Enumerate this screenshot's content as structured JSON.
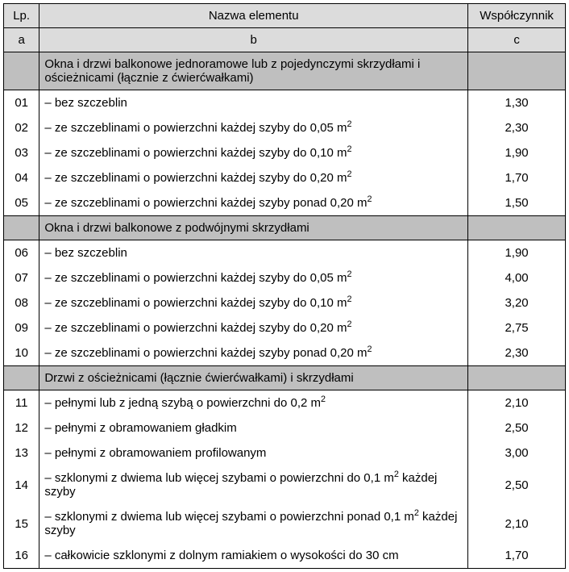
{
  "table": {
    "columns": {
      "lp": {
        "header": "Lp.",
        "sub": "a"
      },
      "nm": {
        "header": "Nazwa elementu",
        "sub": "b"
      },
      "ws": {
        "header": "Współczynnik",
        "sub": "c"
      }
    },
    "colors": {
      "header_bg": "#dcdcdc",
      "section_bg": "#bfbfbf",
      "border": "#000000",
      "text": "#000000",
      "page_bg": "#ffffff"
    },
    "font": {
      "family": "Arial",
      "size_pt": 11
    },
    "superscript": "2",
    "rows": [
      {
        "type": "section",
        "text": "Okna i drzwi balkonowe jednoramowe lub z pojedynczymi skrzydłami i ościeżnicami (łącznie z ćwierćwałkami)"
      },
      {
        "type": "data",
        "lp": "01",
        "text": "– bez szczeblin",
        "coef": "1,30"
      },
      {
        "type": "data",
        "lp": "02",
        "text": "– ze szczeblinami o powierzchni każdej szyby do 0,05 m",
        "sup": true,
        "coef": "2,30"
      },
      {
        "type": "data",
        "lp": "03",
        "text": "– ze szczeblinami o powierzchni każdej szyby do 0,10 m",
        "sup": true,
        "coef": "1,90"
      },
      {
        "type": "data",
        "lp": "04",
        "text": "– ze szczeblinami o powierzchni każdej szyby do 0,20 m",
        "sup": true,
        "coef": "1,70"
      },
      {
        "type": "data",
        "lp": "05",
        "text": "– ze szczeblinami o powierzchni każdej szyby ponad 0,20 m",
        "sup": true,
        "coef": "1,50"
      },
      {
        "type": "section",
        "text": "Okna i drzwi balkonowe z podwójnymi skrzydłami"
      },
      {
        "type": "data",
        "lp": "06",
        "text": "– bez szczeblin",
        "coef": "1,90"
      },
      {
        "type": "data",
        "lp": "07",
        "text": "– ze szczeblinami o powierzchni każdej szyby do 0,05 m",
        "sup": true,
        "coef": "4,00"
      },
      {
        "type": "data",
        "lp": "08",
        "text": "– ze szczeblinami o powierzchni każdej szyby do 0,10 m",
        "sup": true,
        "coef": "3,20"
      },
      {
        "type": "data",
        "lp": "09",
        "text": "– ze szczeblinami o powierzchni każdej szyby do 0,20 m",
        "sup": true,
        "coef": "2,75"
      },
      {
        "type": "data",
        "lp": "10",
        "text": "– ze szczeblinami o powierzchni każdej szyby ponad 0,20 m",
        "sup": true,
        "coef": "2,30"
      },
      {
        "type": "section",
        "text": "Drzwi z ościeżnicami (łącznie ćwierćwałkami) i skrzydłami"
      },
      {
        "type": "data",
        "lp": "11",
        "text": "– pełnymi lub z jedną szybą o powierzchni do 0,2 m",
        "sup": true,
        "coef": "2,10"
      },
      {
        "type": "data",
        "lp": "12",
        "text": "– pełnymi z obramowaniem gładkim",
        "coef": "2,50"
      },
      {
        "type": "data",
        "lp": "13",
        "text": "– pełnymi z obramowaniem profilowanym",
        "coef": "3,00"
      },
      {
        "type": "data",
        "lp": "14",
        "text": "– szklonymi z dwiema lub więcej szybami o powierzchni do 0,1 m",
        "sup": true,
        "text2": " każdej szyby",
        "coef": "2,50"
      },
      {
        "type": "data",
        "lp": "15",
        "text": "– szklonymi z dwiema lub więcej szybami o powierzchni ponad 0,1 m",
        "sup": true,
        "text2": " każdej szyby",
        "coef": "2,10"
      },
      {
        "type": "data",
        "lp": "16",
        "text": "– całkowicie szklonymi z dolnym ramiakiem o wysokości do 30 cm",
        "coef": "1,70"
      }
    ]
  }
}
